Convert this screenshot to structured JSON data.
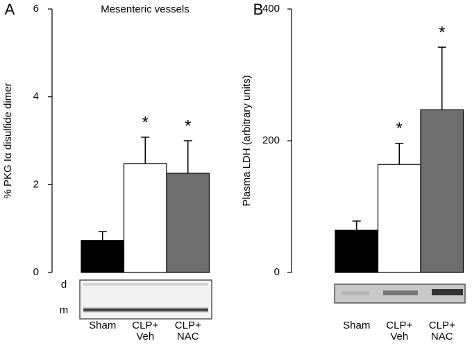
{
  "chart_data": [
    {
      "type": "bar",
      "panel_label": "A",
      "title": "Mesenteric vessels",
      "ylabel": "% PKG Iα disulfide dimer",
      "categories": [
        "Sham",
        "CLP+ Veh",
        "CLP+ NAC"
      ],
      "values": [
        0.73,
        2.48,
        2.26
      ],
      "errors": [
        0.2,
        0.6,
        0.74
      ],
      "colors": [
        "#000000",
        "#ffffff",
        "#6e6e6e"
      ],
      "significance": [
        null,
        "*",
        "*"
      ],
      "blot_labels": [
        "d",
        "m"
      ],
      "ylim": [
        0,
        6
      ],
      "yticks": [
        0,
        2,
        4,
        6
      ]
    },
    {
      "type": "bar",
      "panel_label": "B",
      "ylabel": "Plasma LDH (arbitrary units)",
      "categories": [
        "Sham",
        "CLP+ Veh",
        "CLP+ NAC"
      ],
      "values": [
        64,
        164,
        247
      ],
      "errors": [
        14,
        32,
        95
      ],
      "colors": [
        "#000000",
        "#ffffff",
        "#6e6e6e"
      ],
      "significance": [
        null,
        "*",
        "*"
      ],
      "ylim": [
        0,
        400
      ],
      "yticks": [
        0,
        200,
        400
      ]
    }
  ]
}
